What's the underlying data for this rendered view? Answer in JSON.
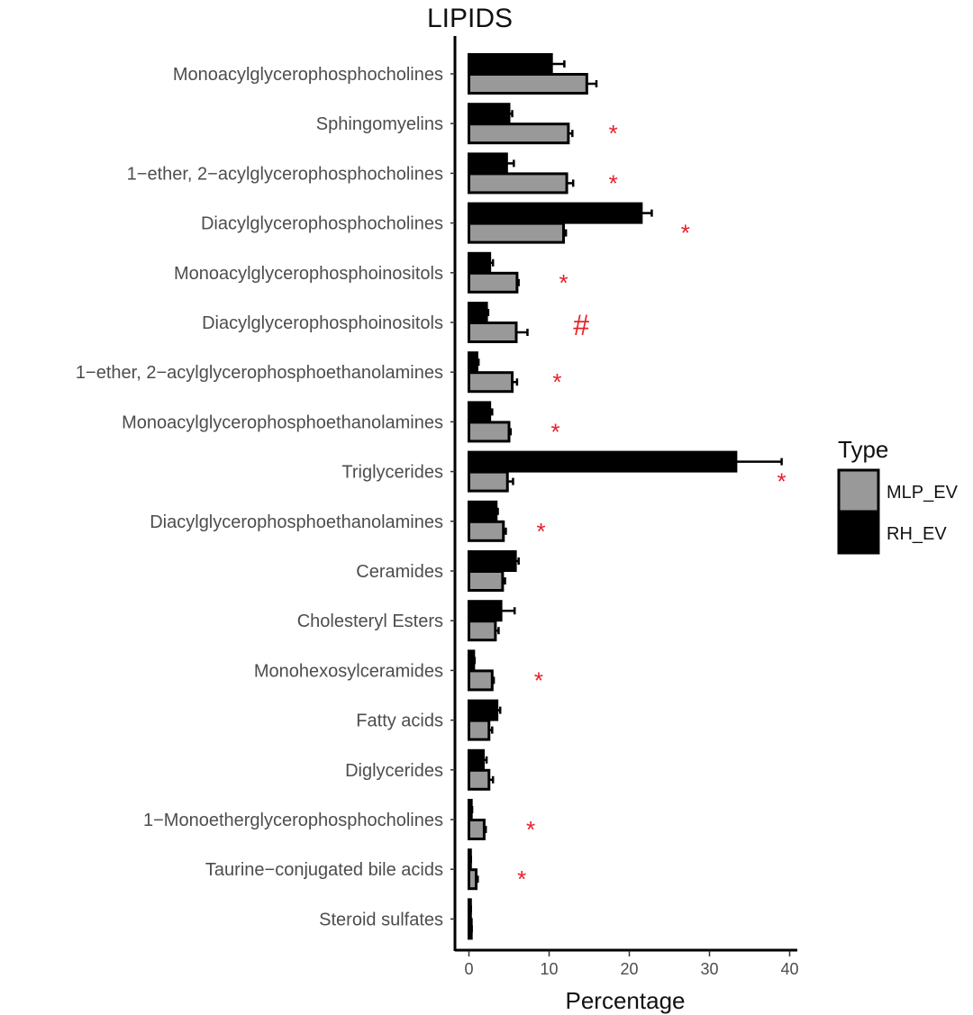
{
  "chart_data": {
    "type": "bar",
    "orientation": "horizontal",
    "title": "LIPIDS",
    "xlabel": "Percentage",
    "ylabel": "",
    "xlim": [
      -1.5,
      40.5
    ],
    "x_ticks": [
      0,
      10,
      20,
      30,
      40
    ],
    "x_tick_labels": [
      "0",
      "10",
      "20",
      "30",
      "40"
    ],
    "grid": false,
    "legend_position": "right",
    "legend_title": "Type",
    "categories": [
      "Monoacylglycerophosphocholines",
      "Sphingomyelins",
      "1−ether, 2−acylglycerophosphocholines",
      "Diacylglycerophosphocholines",
      "Monoacylglycerophosphoinositols",
      "Diacylglycerophosphoinositols",
      "1−ether, 2−acylglycerophosphoethanolamines",
      "Monoacylglycerophosphoethanolamines",
      "Triglycerides",
      "Diacylglycerophosphoethanolamines",
      "Ceramides",
      "Cholesteryl Esters",
      "Monohexosylceramides",
      "Fatty acids",
      "Diglycerides",
      "1−Monoetherglycerophosphocholines",
      "Taurine−conjugated bile acids",
      "Steroid sulfates"
    ],
    "series": [
      {
        "name": "MLP_EV",
        "color": "#999999",
        "values": [
          14.7,
          12.4,
          12.2,
          11.8,
          6.0,
          5.9,
          5.4,
          5.0,
          4.8,
          4.3,
          4.2,
          3.3,
          2.9,
          2.5,
          2.5,
          1.9,
          0.9,
          0.3
        ],
        "errors": [
          1.2,
          0.5,
          0.8,
          0.3,
          0.2,
          1.4,
          0.6,
          0.2,
          0.7,
          0.3,
          0.3,
          0.4,
          0.2,
          0.4,
          0.5,
          0.2,
          0.2,
          0.05
        ]
      },
      {
        "name": "RH_EV",
        "color": "#000000",
        "values": [
          10.3,
          5.0,
          4.7,
          21.5,
          2.6,
          2.2,
          1.0,
          2.6,
          33.3,
          3.4,
          5.8,
          4.0,
          0.6,
          3.5,
          1.8,
          0.3,
          0.2,
          0.2
        ],
        "errors": [
          1.6,
          0.4,
          0.9,
          1.3,
          0.4,
          0.2,
          0.2,
          0.3,
          5.7,
          0.2,
          0.4,
          1.7,
          0.1,
          0.4,
          0.4,
          0.1,
          0.05,
          0.05
        ]
      }
    ],
    "annotations": [
      {
        "category_index": 1,
        "x": 18.0,
        "text": "*"
      },
      {
        "category_index": 2,
        "x": 18.0,
        "text": "*"
      },
      {
        "category_index": 3,
        "x": 27.0,
        "text": "*"
      },
      {
        "category_index": 4,
        "x": 11.8,
        "text": "*"
      },
      {
        "category_index": 5,
        "x": 14.0,
        "text": "#"
      },
      {
        "category_index": 6,
        "x": 11.0,
        "text": "*"
      },
      {
        "category_index": 7,
        "x": 10.8,
        "text": "*"
      },
      {
        "category_index": 8,
        "x": 39.0,
        "text": "*"
      },
      {
        "category_index": 9,
        "x": 9.0,
        "text": "*"
      },
      {
        "category_index": 12,
        "x": 8.7,
        "text": "*"
      },
      {
        "category_index": 15,
        "x": 7.7,
        "text": "*"
      },
      {
        "category_index": 16,
        "x": 6.6,
        "text": "*"
      }
    ]
  }
}
